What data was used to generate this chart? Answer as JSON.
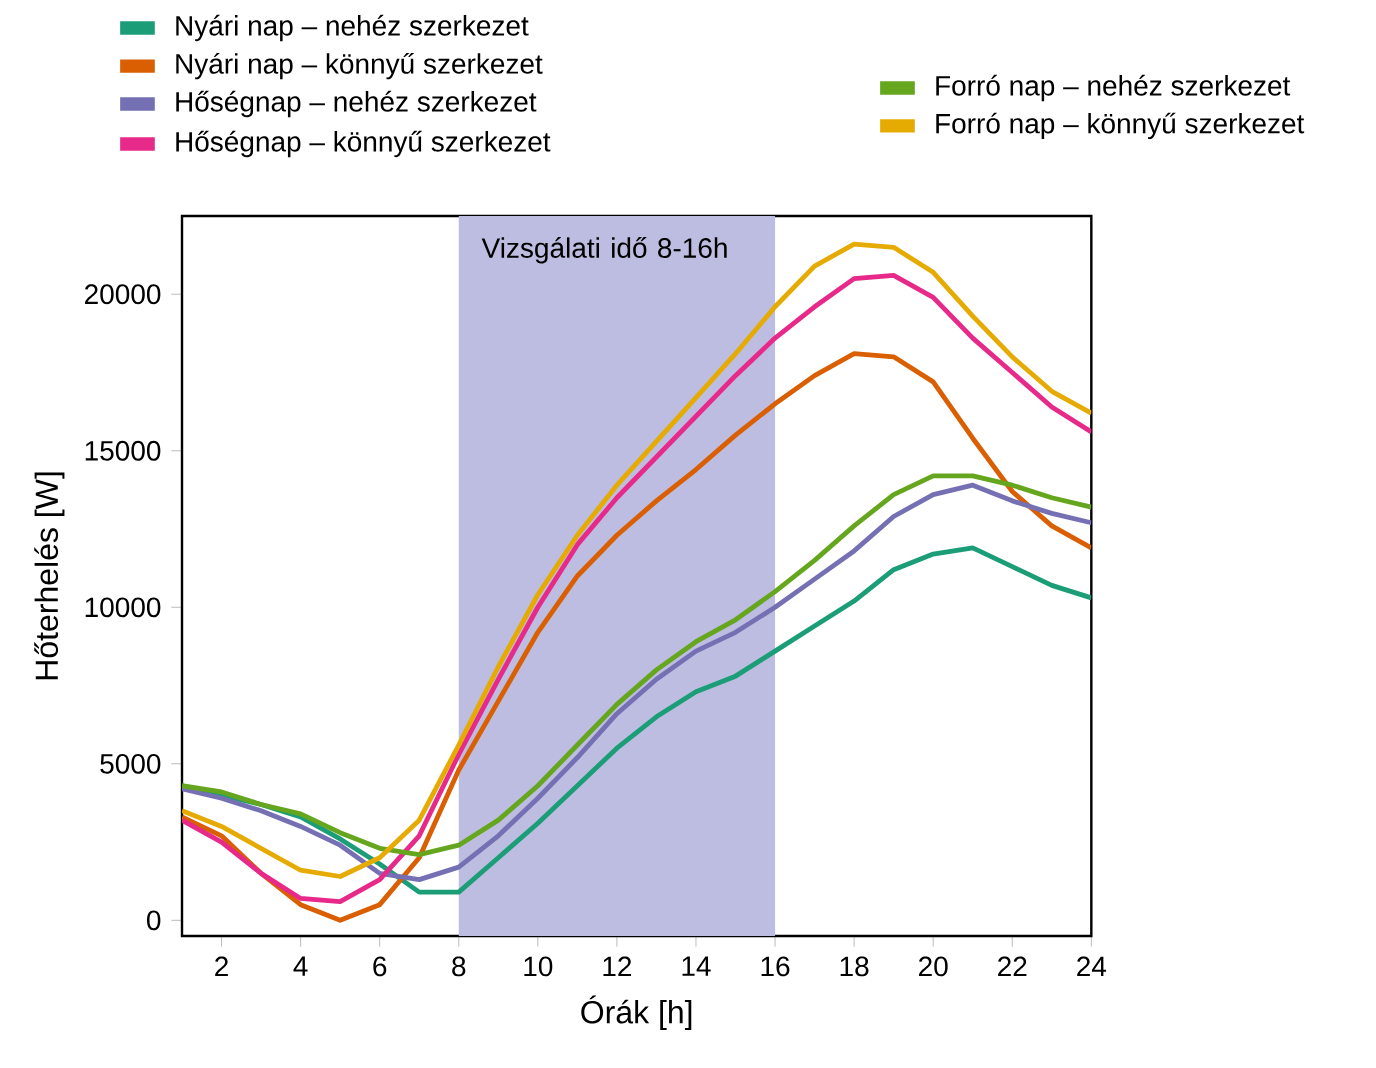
{
  "chart_data": {
    "type": "line",
    "xlabel": "Órák [h]",
    "ylabel": "Hőterhelés [W]",
    "x": [
      1,
      2,
      3,
      4,
      5,
      6,
      7,
      8,
      9,
      10,
      11,
      12,
      13,
      14,
      15,
      16,
      17,
      18,
      19,
      20,
      21,
      22,
      23,
      24
    ],
    "series": [
      {
        "name": "Nyári nap – nehéz szerkezet",
        "color": "#1b9e77",
        "values": [
          4300,
          4000,
          3700,
          3300,
          2600,
          1800,
          900,
          900,
          2000,
          3100,
          4300,
          5500,
          6500,
          7300,
          7800,
          8600,
          9400,
          10200,
          11200,
          11700,
          11900,
          11300,
          10700,
          10300
        ]
      },
      {
        "name": "Nyári nap – könnyű szerkezet",
        "color": "#d95f02",
        "values": [
          3300,
          2700,
          1500,
          500,
          0,
          500,
          2000,
          4800,
          7000,
          9200,
          11000,
          12300,
          13400,
          14400,
          15500,
          16500,
          17400,
          18100,
          18000,
          17200,
          15400,
          13700,
          12600,
          11900
        ]
      },
      {
        "name": "Hőségnap – nehéz szerkezet",
        "color": "#7570b3",
        "values": [
          4200,
          3900,
          3500,
          3000,
          2400,
          1500,
          1300,
          1700,
          2700,
          3900,
          5200,
          6600,
          7700,
          8600,
          9200,
          10000,
          10900,
          11800,
          12900,
          13600,
          13900,
          13400,
          13000,
          12700
        ]
      },
      {
        "name": "Hőségnap – könnyű szerkezet",
        "color": "#e7298a",
        "values": [
          3200,
          2500,
          1500,
          700,
          600,
          1300,
          2700,
          5300,
          7700,
          10000,
          12000,
          13500,
          14800,
          16100,
          17400,
          18600,
          19600,
          20500,
          20600,
          19900,
          18600,
          17500,
          16400,
          15600
        ]
      },
      {
        "name": "Forró nap – nehéz szerkezet",
        "color": "#66a61e",
        "values": [
          4300,
          4100,
          3700,
          3400,
          2800,
          2300,
          2100,
          2400,
          3200,
          4300,
          5600,
          6900,
          8000,
          8900,
          9600,
          10500,
          11500,
          12600,
          13600,
          14200,
          14200,
          13900,
          13500,
          13200
        ]
      },
      {
        "name": "Forró nap – könnyű szerkezet",
        "color": "#e6ab02",
        "values": [
          3500,
          3000,
          2300,
          1600,
          1400,
          2000,
          3200,
          5600,
          8100,
          10400,
          12300,
          13900,
          15300,
          16700,
          18100,
          19600,
          20900,
          21600,
          21500,
          20700,
          19300,
          18000,
          16900,
          16200
        ]
      }
    ],
    "xlim": [
      1,
      24
    ],
    "ylim": [
      -500,
      22500
    ],
    "xticks": [
      2,
      4,
      6,
      8,
      10,
      12,
      14,
      16,
      18,
      20,
      22,
      24
    ],
    "yticks": [
      0,
      5000,
      10000,
      15000,
      20000
    ],
    "bands": [
      {
        "axis": "x",
        "from": 8,
        "to": 16,
        "label": "Vizsgálati idő 8-16h",
        "color": "#bcbde0"
      }
    ],
    "grid": false,
    "legend": "top",
    "marker": "none",
    "line_style": "solid"
  }
}
